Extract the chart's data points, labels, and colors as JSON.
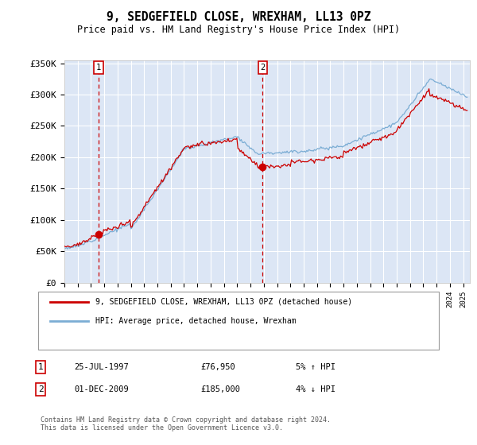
{
  "title": "9, SEDGEFIELD CLOSE, WREXHAM, LL13 0PZ",
  "subtitle": "Price paid vs. HM Land Registry's House Price Index (HPI)",
  "background_color": "#dce6f5",
  "plot_background": "#dce6f5",
  "ylim": [
    0,
    350000
  ],
  "xlim_start": 1995.0,
  "xlim_end": 2025.5,
  "sale1_date": 1997.57,
  "sale1_price": 76950,
  "sale2_date": 2009.92,
  "sale2_price": 185000,
  "legend_line1": "9, SEDGEFIELD CLOSE, WREXHAM, LL13 0PZ (detached house)",
  "legend_line2": "HPI: Average price, detached house, Wrexham",
  "ann1_date": "25-JUL-1997",
  "ann1_price": "£76,950",
  "ann1_hpi": "5% ↑ HPI",
  "ann2_date": "01-DEC-2009",
  "ann2_price": "£185,000",
  "ann2_hpi": "4% ↓ HPI",
  "footer": "Contains HM Land Registry data © Crown copyright and database right 2024.\nThis data is licensed under the Open Government Licence v3.0.",
  "line_red": "#cc0000",
  "line_blue": "#7badd4",
  "grid_color": "#ffffff"
}
